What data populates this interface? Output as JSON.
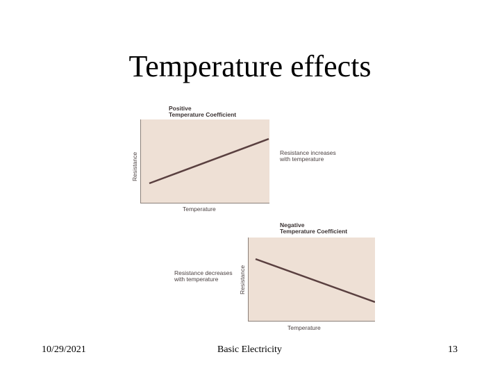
{
  "slide": {
    "title": "Temperature effects"
  },
  "positive_diagram": {
    "heading_line1": "Positive",
    "heading_line2": "Temperature Coefficient",
    "y_label": "Resistance",
    "x_label": "Temperature",
    "note_line1": "Resistance increases",
    "note_line2": "with temperature",
    "trend": "increasing"
  },
  "negative_diagram": {
    "heading_line1": "Negative",
    "heading_line2": "Temperature Coefficient",
    "y_label": "Resistance",
    "x_label": "Temperature",
    "note_line1": "Resistance decreases",
    "note_line2": "with temperature",
    "trend": "decreasing"
  },
  "footer": {
    "date": "10/29/2021",
    "center": "Basic Electricity",
    "page": "13"
  },
  "colors": {
    "plot_background": "#eee0d5",
    "line": "#5a4040"
  }
}
